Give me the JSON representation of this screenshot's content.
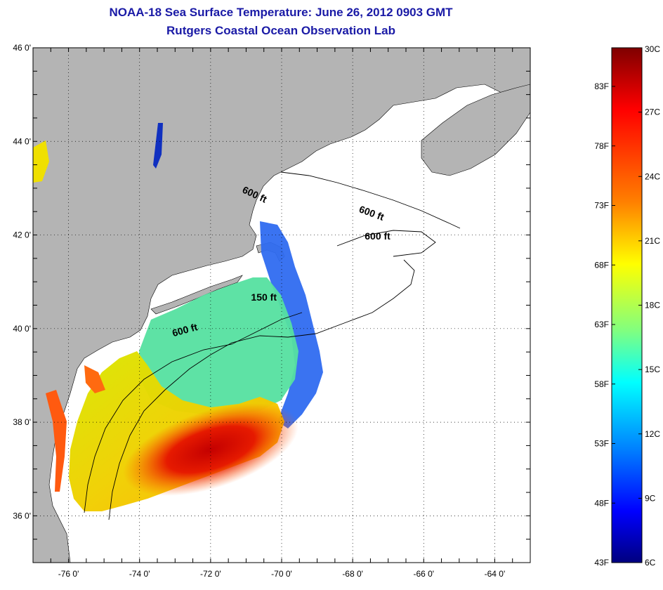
{
  "title_line1": "NOAA-18 Sea Surface Temperature:  June 26, 2012 0903 GMT",
  "title_line2": "Rutgers Coastal Ocean Observation Lab",
  "map": {
    "lon_range": [
      -77,
      -63
    ],
    "lat_range": [
      35,
      46
    ],
    "lat_ticks": [
      {
        "value": 46,
        "label": "46 0'"
      },
      {
        "value": 44,
        "label": "44 0'"
      },
      {
        "value": 42,
        "label": "42 0'"
      },
      {
        "value": 40,
        "label": "40 0'"
      },
      {
        "value": 38,
        "label": "38 0'"
      },
      {
        "value": 36,
        "label": "36 0'"
      }
    ],
    "lon_ticks": [
      {
        "value": -76,
        "label": "-76 0'"
      },
      {
        "value": -74,
        "label": "-74 0'"
      },
      {
        "value": -72,
        "label": "-72 0'"
      },
      {
        "value": -70,
        "label": "-70 0'"
      },
      {
        "value": -68,
        "label": "-68 0'"
      },
      {
        "value": -66,
        "label": "-66 0'"
      },
      {
        "value": -64,
        "label": "-64 0'"
      }
    ],
    "grid": "dotted",
    "land_color": "#b4b4b4",
    "contour_labels": [
      {
        "text": "600 ft",
        "lon": -70.8,
        "lat": 42.8,
        "rotate": 25
      },
      {
        "text": "600 ft",
        "lon": -67.5,
        "lat": 42.4,
        "rotate": 20
      },
      {
        "text": "600 ft",
        "lon": -67.3,
        "lat": 41.9,
        "rotate": 0
      },
      {
        "text": "150 ft",
        "lon": -70.5,
        "lat": 40.6,
        "rotate": 0
      },
      {
        "text": "600 ft",
        "lon": -72.7,
        "lat": 39.9,
        "rotate": -15
      }
    ]
  },
  "colorbar": {
    "left_labels": [
      "83F",
      "78F",
      "73F",
      "68F",
      "63F",
      "58F",
      "53F",
      "48F",
      "43F"
    ],
    "right_labels": [
      "30C",
      "27C",
      "24C",
      "21C",
      "18C",
      "15C",
      "12C",
      "9C",
      "6C"
    ],
    "colors": [
      "#7f0000",
      "#ff0000",
      "#ff8000",
      "#ffff00",
      "#80ff80",
      "#00ffff",
      "#0080ff",
      "#0000ff",
      "#00007f"
    ]
  }
}
